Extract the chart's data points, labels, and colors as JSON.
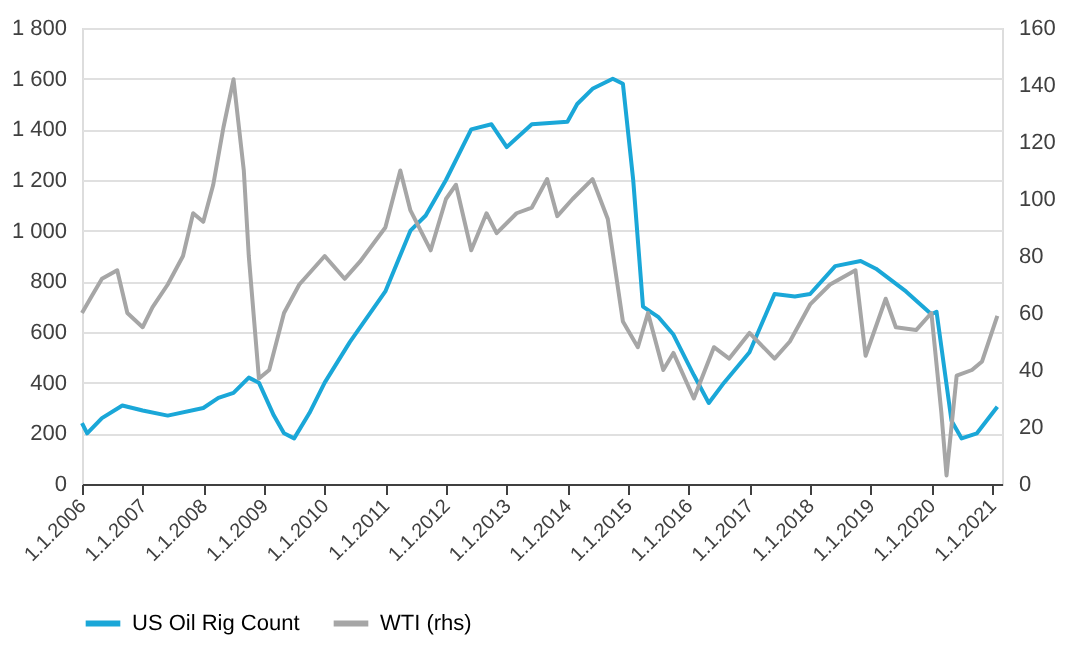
{
  "chart_data": {
    "type": "line",
    "xlim": [
      "2006-01-01",
      "2021-03-01"
    ],
    "xticks": [
      {
        "value": "2006-01-01",
        "label": "1.1.2006"
      },
      {
        "value": "2007-01-01",
        "label": "1.1.2007"
      },
      {
        "value": "2008-01-01",
        "label": "1.1.2008"
      },
      {
        "value": "2009-01-01",
        "label": "1.1.2009"
      },
      {
        "value": "2010-01-01",
        "label": "1.1.2010"
      },
      {
        "value": "2011-01-01",
        "label": "1.1.2011"
      },
      {
        "value": "2012-01-01",
        "label": "1.1.2012"
      },
      {
        "value": "2013-01-01",
        "label": "1.1.2013"
      },
      {
        "value": "2014-01-01",
        "label": "1.1.2014"
      },
      {
        "value": "2015-01-01",
        "label": "1.1.2015"
      },
      {
        "value": "2016-01-01",
        "label": "1.1.2016"
      },
      {
        "value": "2017-01-01",
        "label": "1.1.2017"
      },
      {
        "value": "2018-01-01",
        "label": "1.1.2018"
      },
      {
        "value": "2019-01-01",
        "label": "1.1.2019"
      },
      {
        "value": "2020-01-01",
        "label": "1.1.2020"
      },
      {
        "value": "2021-01-01",
        "label": "1.1.2021"
      }
    ],
    "ylim": [
      0,
      1800
    ],
    "yticks": [
      0,
      {
        "value": 200,
        "label": "200"
      },
      {
        "value": 400,
        "label": "400"
      },
      {
        "value": 600,
        "label": "600"
      },
      {
        "value": 800,
        "label": "800"
      },
      {
        "value": 1000,
        "label": "1 000"
      },
      {
        "value": 1200,
        "label": "1 200"
      },
      {
        "value": 1400,
        "label": "1 400"
      },
      {
        "value": 1600,
        "label": "1 600"
      },
      {
        "value": 1800,
        "label": "1 800"
      }
    ],
    "y2lim": [
      0,
      160
    ],
    "y2ticks": [
      0,
      20,
      40,
      60,
      80,
      100,
      120,
      140,
      160
    ],
    "grid": "y",
    "legend": "bottom",
    "marker": "none",
    "line_style": "solid",
    "series": [
      {
        "name": "US Oil Rig Count",
        "color": "#1aa7d8",
        "x": [
          "2006-01",
          "2006-02",
          "2006-05",
          "2006-09",
          "2007-01",
          "2007-06",
          "2008-01",
          "2008-04",
          "2008-07",
          "2008-10",
          "2008-12",
          "2009-03",
          "2009-05",
          "2009-07",
          "2009-10",
          "2010-01",
          "2010-06",
          "2011-01",
          "2011-06",
          "2011-09",
          "2012-01",
          "2012-06",
          "2012-10",
          "2013-01",
          "2013-06",
          "2014-01",
          "2014-03",
          "2014-06",
          "2014-10",
          "2014-12",
          "2015-02",
          "2015-04",
          "2015-07",
          "2015-10",
          "2016-02",
          "2016-05",
          "2016-08",
          "2017-01",
          "2017-06",
          "2017-10",
          "2018-01",
          "2018-06",
          "2018-11",
          "2019-02",
          "2019-08",
          "2020-01",
          "2020-02",
          "2020-05",
          "2020-07",
          "2020-10",
          "2021-02"
        ],
        "values": [
          240,
          200,
          260,
          310,
          290,
          270,
          300,
          340,
          360,
          420,
          400,
          270,
          200,
          180,
          280,
          400,
          560,
          760,
          1000,
          1060,
          1200,
          1400,
          1420,
          1330,
          1420,
          1430,
          1500,
          1560,
          1600,
          1580,
          1200,
          700,
          660,
          590,
          430,
          320,
          400,
          520,
          750,
          740,
          750,
          860,
          880,
          850,
          760,
          670,
          680,
          250,
          180,
          200,
          305
        ]
      },
      {
        "name": "WTI (rhs)",
        "color": "#a6a6a6",
        "axis": "y2",
        "x": [
          "2006-01",
          "2006-03",
          "2006-05",
          "2006-08",
          "2006-10",
          "2007-01",
          "2007-03",
          "2007-06",
          "2007-09",
          "2007-11",
          "2008-01",
          "2008-03",
          "2008-05",
          "2008-07",
          "2008-09",
          "2008-10",
          "2008-12",
          "2009-02",
          "2009-05",
          "2009-08",
          "2010-01",
          "2010-05",
          "2010-08",
          "2011-01",
          "2011-04",
          "2011-06",
          "2011-10",
          "2012-01",
          "2012-03",
          "2012-06",
          "2012-09",
          "2012-11",
          "2013-03",
          "2013-06",
          "2013-09",
          "2013-11",
          "2014-02",
          "2014-06",
          "2014-09",
          "2014-12",
          "2015-03",
          "2015-05",
          "2015-08",
          "2015-10",
          "2016-02",
          "2016-06",
          "2016-09",
          "2017-01",
          "2017-06",
          "2017-09",
          "2018-01",
          "2018-05",
          "2018-10",
          "2018-12",
          "2019-04",
          "2019-06",
          "2019-10",
          "2020-01",
          "2020-03",
          "2020-04",
          "2020-06",
          "2020-09",
          "2020-11",
          "2021-02"
        ],
        "values": [
          60,
          66,
          72,
          75,
          60,
          55,
          62,
          70,
          80,
          95,
          92,
          105,
          125,
          142,
          110,
          80,
          37,
          40,
          60,
          70,
          80,
          72,
          78,
          90,
          110,
          96,
          82,
          100,
          105,
          82,
          95,
          88,
          95,
          97,
          107,
          94,
          100,
          107,
          93,
          57,
          48,
          60,
          40,
          46,
          30,
          48,
          44,
          53,
          44,
          50,
          63,
          70,
          75,
          45,
          65,
          55,
          54,
          60,
          25,
          3,
          38,
          40,
          43,
          59
        ]
      }
    ]
  }
}
